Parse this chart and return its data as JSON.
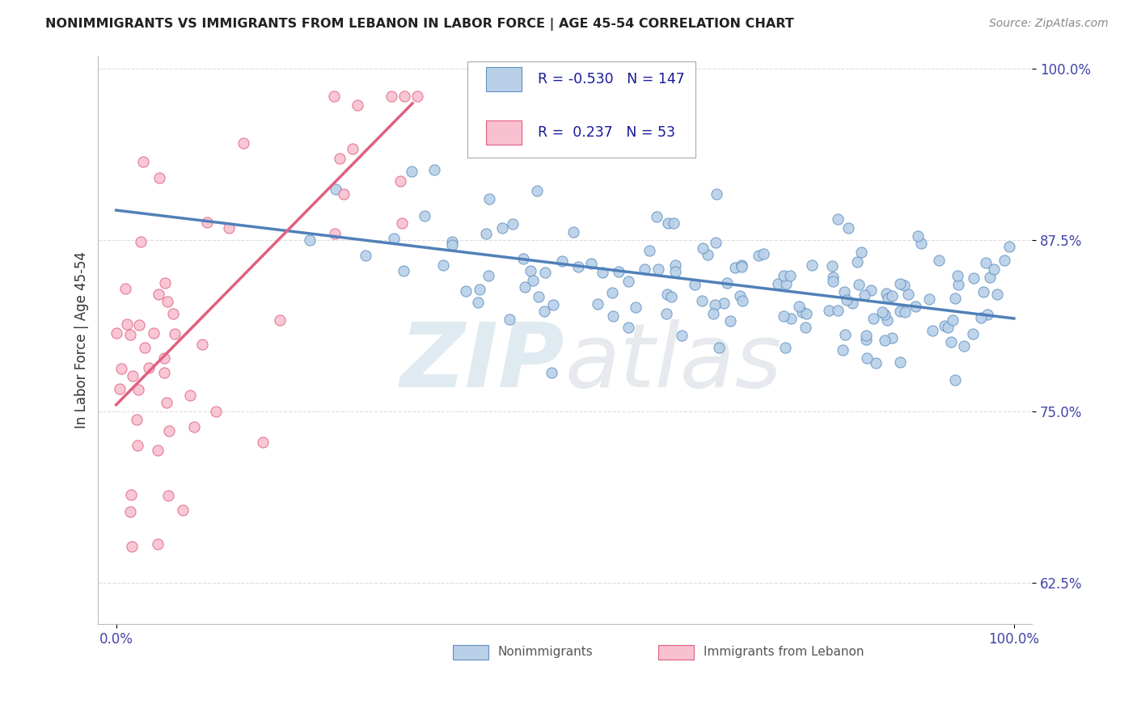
{
  "title": "NONIMMIGRANTS VS IMMIGRANTS FROM LEBANON IN LABOR FORCE | AGE 45-54 CORRELATION CHART",
  "source": "Source: ZipAtlas.com",
  "ylabel": "In Labor Force | Age 45-54",
  "xlim": [
    -0.02,
    1.02
  ],
  "ylim": [
    0.595,
    1.01
  ],
  "yticks": [
    0.625,
    0.75,
    0.875,
    1.0
  ],
  "ytick_labels": [
    "62.5%",
    "75.0%",
    "87.5%",
    "100.0%"
  ],
  "xticks": [
    0.0,
    1.0
  ],
  "xtick_labels": [
    "0.0%",
    "100.0%"
  ],
  "blue_R": -0.53,
  "blue_N": 147,
  "pink_R": 0.237,
  "pink_N": 53,
  "blue_color": "#b8d0e8",
  "blue_edge_color": "#6090c0",
  "pink_color": "#f8c0d0",
  "pink_edge_color": "#e06080",
  "blue_line_color": "#5080b8",
  "pink_line_color": "#e06080",
  "legend_label_blue": "Nonimmigrants",
  "legend_label_pink": "Immigrants from Lebanon",
  "background_color": "#ffffff",
  "grid_color": "#dddddd",
  "title_color": "#222222",
  "axis_label_color": "#333333",
  "tick_color": "#4444aa",
  "legend_text_color": "#1a1a9a",
  "blue_trend_x0": 0.0,
  "blue_trend_x1": 1.0,
  "blue_trend_y0": 0.897,
  "blue_trend_y1": 0.818,
  "pink_trend_x0": 0.0,
  "pink_trend_x1": 0.33,
  "pink_trend_y0": 0.755,
  "pink_trend_y1": 0.975
}
